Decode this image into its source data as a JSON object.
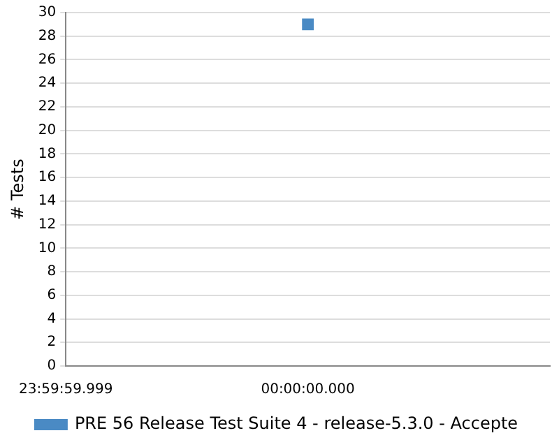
{
  "chart_data": {
    "type": "scatter",
    "ylabel": "# Tests",
    "categories": [
      "23:59:59.999",
      "00:00:00.000",
      null
    ],
    "series": [
      {
        "name": "PRE 56 Release Test Suite 4 - release-5.3.0 - Accepte",
        "color": "#4a8ac4",
        "values": [
          null,
          29,
          null
        ]
      }
    ],
    "ylim": [
      0,
      30
    ],
    "yticks": [
      0,
      2,
      4,
      6,
      8,
      10,
      12,
      14,
      16,
      18,
      20,
      22,
      24,
      26,
      28,
      30
    ],
    "grid": "y",
    "legend": "bottom",
    "marker": "square"
  }
}
